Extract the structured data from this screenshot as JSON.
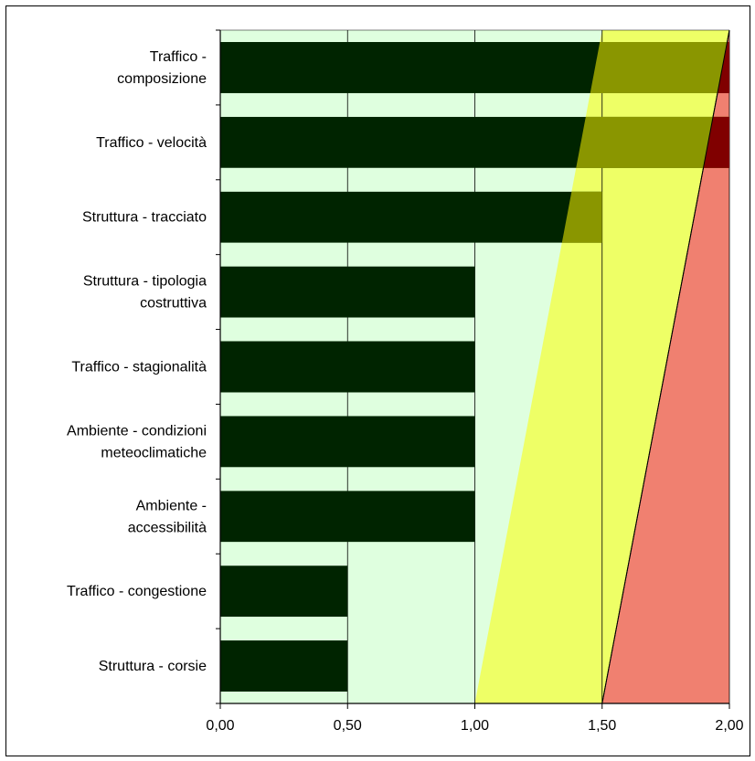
{
  "chart_data": {
    "type": "bar",
    "orientation": "horizontal",
    "title": "",
    "xlabel": "",
    "ylabel": "",
    "categories": [
      "Traffico - composizione",
      "Traffico - velocità",
      "Struttura - tracciato",
      "Struttura - tipologia costruttiva",
      "Traffico - stagionalità",
      "Ambiente - condizioni meteoclimatiche",
      "Ambiente - accessibilità",
      "Traffico - congestione",
      "Struttura - corsie"
    ],
    "category_label_lines": [
      [
        "Traffico -",
        "composizione"
      ],
      [
        "Traffico - velocità"
      ],
      [
        "Struttura - tracciato"
      ],
      [
        "Struttura - tipologia",
        "costruttiva"
      ],
      [
        "Traffico - stagionalità"
      ],
      [
        "Ambiente - condizioni",
        "meteoclimatiche"
      ],
      [
        "Ambiente -",
        "accessibilità"
      ],
      [
        "Traffico - congestione"
      ],
      [
        "Struttura - corsie"
      ]
    ],
    "values": [
      2.0,
      2.0,
      1.5,
      1.0,
      1.0,
      1.0,
      1.0,
      0.5,
      0.5
    ],
    "xlim": [
      0,
      2.0
    ],
    "xticks": [
      0,
      0.5,
      1.0,
      1.5,
      2.0
    ],
    "xtick_labels": [
      "0,00",
      "0,50",
      "1,00",
      "1,50",
      "2,00"
    ],
    "grid": "vertical",
    "legend": "none",
    "background_zones": [
      {
        "name": "low",
        "color": "#dfffdf",
        "boundary": {
          "bottom": 1.0,
          "top": 1.5
        }
      },
      {
        "name": "medium",
        "color": "#eeff66",
        "boundary": {
          "bottom": 1.5,
          "top": 2.0
        }
      },
      {
        "name": "high",
        "color": "#f08070"
      }
    ],
    "colors": {
      "bar_on_low": "#002400",
      "bar_on_medium": "#8a9600",
      "bar_on_high": "#800000",
      "axis": "#000000"
    }
  }
}
